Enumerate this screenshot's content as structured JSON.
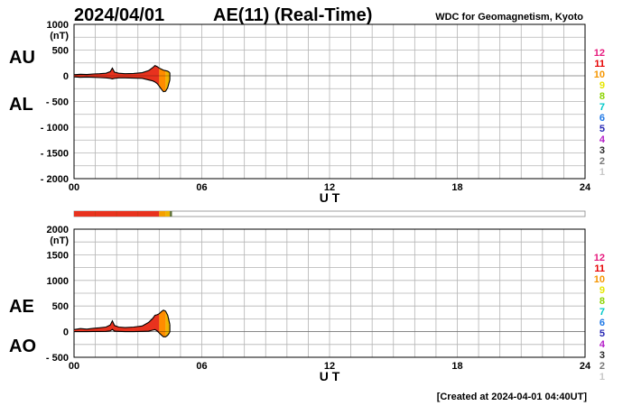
{
  "header": {
    "date": "2024/04/01",
    "title": "AE(11) (Real-Time)",
    "source": "WDC for Geomagnetism, Kyoto"
  },
  "footer": {
    "created": "[Created at 2024-04-01 04:40UT]"
  },
  "colors": {
    "fill_main": "#e8321e",
    "fill_recent": "#ff8c00",
    "fill_latest": "#f0b400",
    "outline": "#000000",
    "grid": "#b4b4b4",
    "bar_empty": "#ffffff",
    "bar_mid": "#c83c14",
    "bar_end": "#5a6e32"
  },
  "station_count_legend": [
    {
      "label": "12",
      "color": "#e6197d"
    },
    {
      "label": "11",
      "color": "#e60000"
    },
    {
      "label": "10",
      "color": "#f59600"
    },
    {
      "label": "9",
      "color": "#e6e600"
    },
    {
      "label": "8",
      "color": "#8cd200"
    },
    {
      "label": "7",
      "color": "#00c8c8"
    },
    {
      "label": "6",
      "color": "#1e78e6"
    },
    {
      "label": "5",
      "color": "#2828b4"
    },
    {
      "label": "4",
      "color": "#b41ec8"
    },
    {
      "label": "3",
      "color": "#282828"
    },
    {
      "label": "2",
      "color": "#787878"
    },
    {
      "label": "1",
      "color": "#c8c8c8"
    }
  ],
  "station_bar": {
    "segments": [
      {
        "from": 0.0,
        "to": 4.0,
        "color": "#e8321e"
      },
      {
        "from": 4.0,
        "to": 4.3,
        "color": "#f5a000"
      },
      {
        "from": 4.3,
        "to": 4.5,
        "color": "#f0b400"
      },
      {
        "from": 4.5,
        "to": 4.6,
        "color": "#5a6e32"
      }
    ]
  },
  "chart_data": [
    {
      "type": "area",
      "ylabel": "(nT)",
      "xlabel": "U T",
      "upper_label": "AU",
      "lower_label": "AL",
      "xlim": [
        0,
        24
      ],
      "ylim": [
        -2000,
        1000
      ],
      "yticks": [
        1000,
        500,
        0,
        -500,
        -1000,
        -1500,
        -2000
      ],
      "ytick_labels": [
        "1000",
        "500",
        "0",
        "- 500",
        "- 1000",
        "- 1500",
        "- 2000"
      ],
      "xticks": [
        0,
        6,
        12,
        18,
        24
      ],
      "xtick_labels": [
        "00",
        "06",
        "12",
        "18",
        "24"
      ],
      "x": [
        0.0,
        0.3,
        0.6,
        0.9,
        1.2,
        1.5,
        1.7,
        1.8,
        1.9,
        2.1,
        2.4,
        2.8,
        3.2,
        3.5,
        3.7,
        3.8,
        3.9,
        4.0,
        4.1,
        4.2,
        4.3,
        4.4,
        4.5
      ],
      "series": [
        {
          "name": "AU",
          "values": [
            20,
            30,
            25,
            35,
            40,
            50,
            80,
            150,
            70,
            50,
            40,
            45,
            60,
            100,
            160,
            200,
            180,
            150,
            130,
            110,
            100,
            90,
            60
          ]
        },
        {
          "name": "AL",
          "values": [
            -20,
            -30,
            -25,
            -30,
            -35,
            -40,
            -50,
            -60,
            -50,
            -40,
            -40,
            -45,
            -50,
            -80,
            -100,
            -120,
            -150,
            -200,
            -260,
            -310,
            -300,
            -230,
            -80
          ]
        }
      ]
    },
    {
      "type": "area",
      "ylabel": "(nT)",
      "xlabel": "U T",
      "upper_label": "AE",
      "lower_label": "AO",
      "xlim": [
        0,
        24
      ],
      "ylim": [
        -500,
        2000
      ],
      "yticks": [
        2000,
        1500,
        1000,
        500,
        0,
        -500
      ],
      "ytick_labels": [
        "2000",
        "1500",
        "1000",
        "500",
        "0",
        "- 500"
      ],
      "xticks": [
        0,
        6,
        12,
        18,
        24
      ],
      "xtick_labels": [
        "00",
        "06",
        "12",
        "18",
        "24"
      ],
      "x": [
        0.0,
        0.3,
        0.6,
        0.9,
        1.2,
        1.5,
        1.7,
        1.8,
        1.9,
        2.1,
        2.4,
        2.8,
        3.2,
        3.5,
        3.7,
        3.8,
        3.9,
        4.0,
        4.1,
        4.2,
        4.3,
        4.4,
        4.5
      ],
      "series": [
        {
          "name": "AE",
          "values": [
            40,
            60,
            50,
            65,
            75,
            90,
            130,
            210,
            120,
            90,
            80,
            90,
            110,
            180,
            260,
            320,
            330,
            350,
            390,
            420,
            400,
            320,
            140
          ]
        },
        {
          "name": "AO",
          "values": [
            0,
            0,
            0,
            2,
            2,
            5,
            15,
            45,
            10,
            5,
            0,
            0,
            5,
            10,
            30,
            40,
            15,
            -25,
            -65,
            -100,
            -100,
            -70,
            -10
          ]
        }
      ]
    }
  ]
}
